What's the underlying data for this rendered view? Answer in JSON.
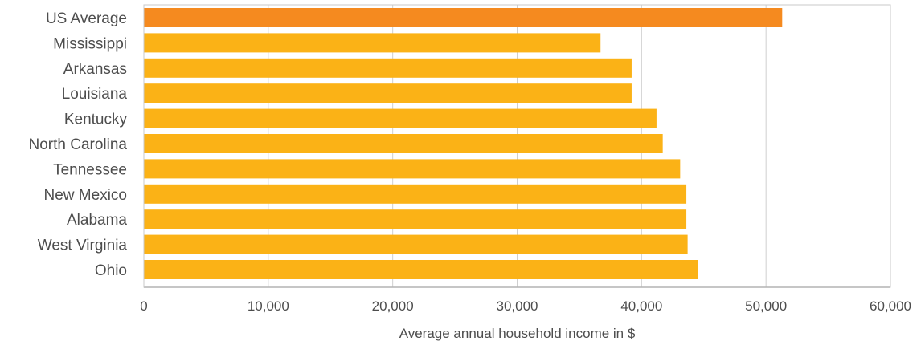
{
  "chart_data": {
    "type": "bar",
    "orientation": "horizontal",
    "title": "",
    "xlabel": "Average annual household income in $",
    "ylabel": "",
    "xlim": [
      0,
      60000
    ],
    "xticks": [
      0,
      10000,
      20000,
      30000,
      40000,
      50000,
      60000
    ],
    "xtick_labels": [
      "0",
      "10,000",
      "20,000",
      "30,000",
      "40,000",
      "50,000",
      "60,000"
    ],
    "grid": true,
    "legend": "none",
    "categories": [
      "US Average",
      "Mississippi",
      "Arkansas",
      "Louisiana",
      "Kentucky",
      "North Carolina",
      "Tennessee",
      "New Mexico",
      "Alabama",
      "West Virginia",
      "Ohio"
    ],
    "values": [
      51300,
      36700,
      39200,
      39200,
      41200,
      41700,
      43100,
      43600,
      43600,
      43700,
      44500
    ],
    "colors": {
      "highlight": "#f58a1f",
      "bar": "#fbb216",
      "grid": "#cfcfcf",
      "text": "#4d4d4d"
    },
    "highlight_categories": [
      "US Average"
    ]
  }
}
